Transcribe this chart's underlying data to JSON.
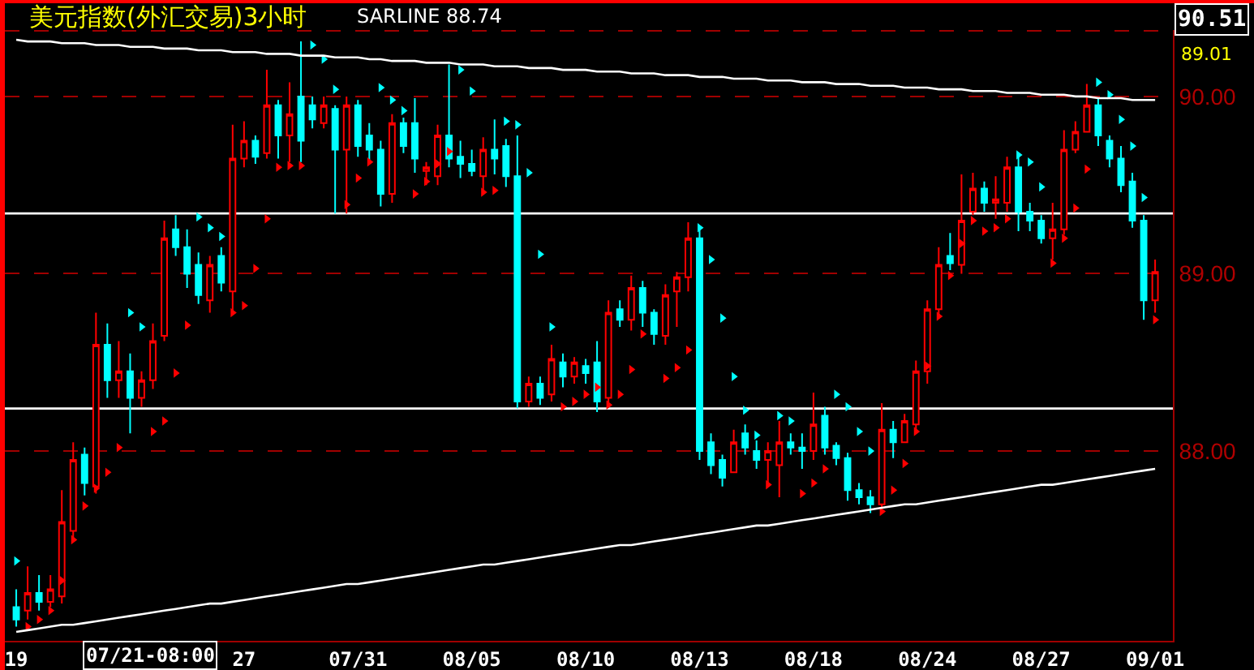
{
  "chart_data": {
    "type": "candlestick",
    "title": "美元指数(外汇交易)3小时",
    "categories": [
      "19",
      null,
      null,
      null,
      null,
      null,
      null,
      null,
      null,
      null,
      null,
      null,
      null,
      null,
      null,
      null,
      null,
      null,
      null,
      null,
      "27",
      null,
      null,
      null,
      null,
      null,
      null,
      null,
      null,
      null,
      "07/31",
      null,
      null,
      null,
      null,
      null,
      null,
      null,
      null,
      null,
      "08/05",
      null,
      null,
      null,
      null,
      null,
      null,
      null,
      null,
      null,
      "08/10",
      null,
      null,
      null,
      null,
      null,
      null,
      null,
      null,
      null,
      "08/13",
      null,
      null,
      null,
      null,
      null,
      null,
      null,
      null,
      null,
      "08/18",
      null,
      null,
      null,
      null,
      null,
      null,
      null,
      null,
      null,
      "08/24",
      null,
      null,
      null,
      null,
      null,
      null,
      null,
      null,
      null,
      "08/27",
      null,
      null,
      null,
      null,
      null,
      null,
      null,
      null,
      null,
      "09/01"
    ],
    "ohlc": [
      [
        87.12,
        87.22,
        87.01,
        87.05
      ],
      [
        87.1,
        87.35,
        87.05,
        87.2
      ],
      [
        87.2,
        87.3,
        87.1,
        87.15
      ],
      [
        87.15,
        87.3,
        87.12,
        87.22
      ],
      [
        87.18,
        87.78,
        87.14,
        87.6
      ],
      [
        87.55,
        88.05,
        87.5,
        87.95
      ],
      [
        87.98,
        88.02,
        87.75,
        87.82
      ],
      [
        87.8,
        88.78,
        87.76,
        88.6
      ],
      [
        88.6,
        88.72,
        88.3,
        88.4
      ],
      [
        88.4,
        88.62,
        88.3,
        88.45
      ],
      [
        88.45,
        88.55,
        88.1,
        88.3
      ],
      [
        88.3,
        88.45,
        88.25,
        88.4
      ],
      [
        88.4,
        88.72,
        88.35,
        88.62
      ],
      [
        88.65,
        89.3,
        88.62,
        89.2
      ],
      [
        89.25,
        89.33,
        89.1,
        89.15
      ],
      [
        89.15,
        89.25,
        88.92,
        89.0
      ],
      [
        89.05,
        89.12,
        88.83,
        88.88
      ],
      [
        88.85,
        89.1,
        88.78,
        89.05
      ],
      [
        89.1,
        89.15,
        88.9,
        88.95
      ],
      [
        88.9,
        89.84,
        88.78,
        89.65
      ],
      [
        89.65,
        89.86,
        89.6,
        89.75
      ],
      [
        89.75,
        89.78,
        89.62,
        89.66
      ],
      [
        89.68,
        90.15,
        89.65,
        89.95
      ],
      [
        89.95,
        89.98,
        89.65,
        89.78
      ],
      [
        89.78,
        90.08,
        89.63,
        89.9
      ],
      [
        90.0,
        90.31,
        89.63,
        89.75
      ],
      [
        89.95,
        90.0,
        89.82,
        89.87
      ],
      [
        89.85,
        90.0,
        89.82,
        89.95
      ],
      [
        89.93,
        89.95,
        89.34,
        89.7
      ],
      [
        89.7,
        90.0,
        89.34,
        89.95
      ],
      [
        89.95,
        89.98,
        89.66,
        89.72
      ],
      [
        89.78,
        89.85,
        89.62,
        89.7
      ],
      [
        89.7,
        89.75,
        89.38,
        89.45
      ],
      [
        89.45,
        89.9,
        89.4,
        89.85
      ],
      [
        89.85,
        89.88,
        89.68,
        89.72
      ],
      [
        89.85,
        89.99,
        89.57,
        89.65
      ],
      [
        89.58,
        89.63,
        89.5,
        89.6
      ],
      [
        89.55,
        89.84,
        89.5,
        89.78
      ],
      [
        89.78,
        90.18,
        89.6,
        89.65
      ],
      [
        89.66,
        89.75,
        89.54,
        89.62
      ],
      [
        89.62,
        89.7,
        89.55,
        89.58
      ],
      [
        89.55,
        89.77,
        89.46,
        89.7
      ],
      [
        89.7,
        89.87,
        89.56,
        89.65
      ],
      [
        89.72,
        89.76,
        89.49,
        89.55
      ],
      [
        89.55,
        89.78,
        88.24,
        88.28
      ],
      [
        88.28,
        88.42,
        88.25,
        88.38
      ],
      [
        88.38,
        88.42,
        88.26,
        88.3
      ],
      [
        88.32,
        88.6,
        88.28,
        88.52
      ],
      [
        88.5,
        88.55,
        88.36,
        88.42
      ],
      [
        88.42,
        88.53,
        88.38,
        88.5
      ],
      [
        88.48,
        88.52,
        88.38,
        88.44
      ],
      [
        88.5,
        88.62,
        88.22,
        88.28
      ],
      [
        88.3,
        88.85,
        88.25,
        88.78
      ],
      [
        88.8,
        88.85,
        88.7,
        88.74
      ],
      [
        88.74,
        88.99,
        88.68,
        88.92
      ],
      [
        88.92,
        88.96,
        88.7,
        88.78
      ],
      [
        88.78,
        88.8,
        88.6,
        88.66
      ],
      [
        88.65,
        88.94,
        88.6,
        88.88
      ],
      [
        88.9,
        89.01,
        88.7,
        88.98
      ],
      [
        88.98,
        89.29,
        88.9,
        89.2
      ],
      [
        89.2,
        89.25,
        87.95,
        88.0
      ],
      [
        88.05,
        88.1,
        87.87,
        87.92
      ],
      [
        87.95,
        87.98,
        87.8,
        87.85
      ],
      [
        87.88,
        88.12,
        87.88,
        88.05
      ],
      [
        88.1,
        88.15,
        87.98,
        88.02
      ],
      [
        88.0,
        88.06,
        87.9,
        87.95
      ],
      [
        87.95,
        88.05,
        87.8,
        88.0
      ],
      [
        87.92,
        88.17,
        87.74,
        88.05
      ],
      [
        88.05,
        88.1,
        87.98,
        88.02
      ],
      [
        88.02,
        88.1,
        87.9,
        88.0
      ],
      [
        88.0,
        88.33,
        87.95,
        88.15
      ],
      [
        88.2,
        88.25,
        87.98,
        88.02
      ],
      [
        88.03,
        88.05,
        87.92,
        87.96
      ],
      [
        87.96,
        87.99,
        87.72,
        87.78
      ],
      [
        87.78,
        87.82,
        87.7,
        87.74
      ],
      [
        87.74,
        87.78,
        87.65,
        87.7
      ],
      [
        87.7,
        88.27,
        87.68,
        88.12
      ],
      [
        88.12,
        88.17,
        87.96,
        88.05
      ],
      [
        88.05,
        88.21,
        88.05,
        88.17
      ],
      [
        88.15,
        88.51,
        88.12,
        88.45
      ],
      [
        88.45,
        88.85,
        88.38,
        88.8
      ],
      [
        88.8,
        89.15,
        88.75,
        89.05
      ],
      [
        89.1,
        89.23,
        89.02,
        89.06
      ],
      [
        89.05,
        89.56,
        89.0,
        89.3
      ],
      [
        89.35,
        89.57,
        89.33,
        89.48
      ],
      [
        89.48,
        89.52,
        89.35,
        89.4
      ],
      [
        89.4,
        89.55,
        89.31,
        89.42
      ],
      [
        89.4,
        89.66,
        89.35,
        89.6
      ],
      [
        89.6,
        89.66,
        89.24,
        89.35
      ],
      [
        89.35,
        89.4,
        89.24,
        89.3
      ],
      [
        89.3,
        89.33,
        89.17,
        89.2
      ],
      [
        89.2,
        89.4,
        89.08,
        89.25
      ],
      [
        89.25,
        89.81,
        89.22,
        89.7
      ],
      [
        89.7,
        89.86,
        89.68,
        89.8
      ],
      [
        89.8,
        90.07,
        89.8,
        89.95
      ],
      [
        89.95,
        89.99,
        89.72,
        89.78
      ],
      [
        89.75,
        89.78,
        89.6,
        89.65
      ],
      [
        89.65,
        89.72,
        89.46,
        89.5
      ],
      [
        89.52,
        89.57,
        89.26,
        89.3
      ],
      [
        89.3,
        89.33,
        88.74,
        88.85
      ],
      [
        88.85,
        89.08,
        88.78,
        89.01
      ]
    ],
    "series": [
      {
        "type": "scatter",
        "marker": "triangle",
        "values": [
          87.38,
          87.01,
          87.05,
          87.1,
          87.27,
          87.5,
          87.69,
          87.79,
          87.88,
          88.02,
          88.78,
          88.7,
          88.11,
          88.17,
          88.44,
          88.71,
          89.32,
          89.26,
          89.21,
          88.78,
          88.82,
          89.03,
          89.31,
          89.6,
          89.61,
          89.61,
          90.29,
          90.21,
          90.04,
          89.39,
          89.54,
          89.63,
          90.05,
          89.98,
          89.92,
          89.45,
          89.52,
          89.62,
          89.69,
          90.15,
          90.03,
          89.46,
          89.47,
          89.86,
          89.84,
          89.57,
          89.11,
          88.7,
          88.25,
          88.28,
          88.32,
          88.36,
          88.26,
          88.32,
          88.46,
          88.66,
          null,
          88.41,
          88.47,
          88.57,
          89.26,
          89.08,
          88.75,
          88.42,
          88.23,
          88.09,
          87.81,
          88.2,
          88.17,
          87.76,
          87.82,
          87.9,
          88.32,
          88.25,
          88.11,
          88.0,
          87.66,
          87.78,
          87.93,
          88.11,
          88.48,
          88.76,
          88.99,
          89.17,
          89.3,
          89.24,
          89.26,
          89.31,
          89.67,
          89.63,
          89.49,
          89.06,
          89.2,
          89.37,
          89.59,
          90.08,
          90.01,
          89.87,
          89.72,
          89.43,
          88.74
        ],
        "colors": [
          "#00ffff",
          "#ff0000",
          "#ff0000",
          "#ff0000",
          "#ff0000",
          "#ff0000",
          "#ff0000",
          "#ff0000",
          "#ff0000",
          "#ff0000",
          "#00ffff",
          "#00ffff",
          "#ff0000",
          "#ff0000",
          "#ff0000",
          "#ff0000",
          "#00ffff",
          "#00ffff",
          "#00ffff",
          "#ff0000",
          "#ff0000",
          "#ff0000",
          "#ff0000",
          "#ff0000",
          "#ff0000",
          "#ff0000",
          "#00ffff",
          "#00ffff",
          "#00ffff",
          "#ff0000",
          "#ff0000",
          "#ff0000",
          "#00ffff",
          "#00ffff",
          "#00ffff",
          "#ff0000",
          "#ff0000",
          "#ff0000",
          "#ff0000",
          "#00ffff",
          "#00ffff",
          "#ff0000",
          "#ff0000",
          "#00ffff",
          "#00ffff",
          "#00ffff",
          "#00ffff",
          "#00ffff",
          "#ff0000",
          "#ff0000",
          "#ff0000",
          "#ff0000",
          "#ff0000",
          "#ff0000",
          "#ff0000",
          "#ff0000",
          "#ff0000",
          "#ff0000",
          "#ff0000",
          "#ff0000",
          "#00ffff",
          "#00ffff",
          "#00ffff",
          "#00ffff",
          "#00ffff",
          "#00ffff",
          "#ff0000",
          "#00ffff",
          "#00ffff",
          "#ff0000",
          "#ff0000",
          "#ff0000",
          "#00ffff",
          "#00ffff",
          "#00ffff",
          "#00ffff",
          "#ff0000",
          "#ff0000",
          "#ff0000",
          "#ff0000",
          "#ff0000",
          "#ff0000",
          "#ff0000",
          "#ff0000",
          "#ff0000",
          "#ff0000",
          "#ff0000",
          "#ff0000",
          "#00ffff",
          "#00ffff",
          "#00ffff",
          "#ff0000",
          "#ff0000",
          "#ff0000",
          "#ff0000",
          "#00ffff",
          "#00ffff",
          "#00ffff",
          "#00ffff",
          "#00ffff",
          "#ff0000"
        ]
      },
      {
        "type": "line",
        "color": "#ffffff",
        "values": [
          90.32,
          90.31,
          90.31,
          90.31,
          90.3,
          90.3,
          90.3,
          90.29,
          90.29,
          90.29,
          90.28,
          90.28,
          90.28,
          90.27,
          90.27,
          90.27,
          90.26,
          90.26,
          90.26,
          90.25,
          90.25,
          90.25,
          90.24,
          90.24,
          90.24,
          90.23,
          90.23,
          90.23,
          90.22,
          90.22,
          90.22,
          90.21,
          90.21,
          90.2,
          90.2,
          90.2,
          90.19,
          90.19,
          90.19,
          90.18,
          90.18,
          90.18,
          90.17,
          90.17,
          90.17,
          90.16,
          90.16,
          90.16,
          90.15,
          90.15,
          90.15,
          90.14,
          90.14,
          90.14,
          90.13,
          90.13,
          90.13,
          90.12,
          90.12,
          90.12,
          90.11,
          90.11,
          90.11,
          90.1,
          90.1,
          90.1,
          90.09,
          90.09,
          90.09,
          90.08,
          90.08,
          90.08,
          90.07,
          90.07,
          90.07,
          90.06,
          90.06,
          90.06,
          90.05,
          90.05,
          90.05,
          90.04,
          90.04,
          90.04,
          90.03,
          90.03,
          90.03,
          90.02,
          90.02,
          90.02,
          90.01,
          90.01,
          90.01,
          90.0,
          90.0,
          89.99,
          89.99,
          89.99,
          89.98,
          89.98,
          89.98
        ]
      },
      {
        "type": "line",
        "color": "#ffffff",
        "values": [
          86.98,
          86.99,
          87.0,
          87.01,
          87.02,
          87.02,
          87.03,
          87.04,
          87.05,
          87.06,
          87.07,
          87.08,
          87.09,
          87.1,
          87.11,
          87.12,
          87.13,
          87.14,
          87.14,
          87.15,
          87.16,
          87.17,
          87.18,
          87.19,
          87.2,
          87.21,
          87.22,
          87.23,
          87.24,
          87.25,
          87.25,
          87.26,
          87.27,
          87.28,
          87.29,
          87.3,
          87.31,
          87.32,
          87.33,
          87.34,
          87.35,
          87.36,
          87.36,
          87.37,
          87.38,
          87.39,
          87.4,
          87.41,
          87.42,
          87.43,
          87.44,
          87.45,
          87.46,
          87.47,
          87.47,
          87.48,
          87.49,
          87.5,
          87.51,
          87.52,
          87.53,
          87.54,
          87.55,
          87.56,
          87.57,
          87.58,
          87.58,
          87.59,
          87.6,
          87.61,
          87.62,
          87.63,
          87.64,
          87.65,
          87.66,
          87.67,
          87.68,
          87.69,
          87.7,
          87.7,
          87.71,
          87.72,
          87.73,
          87.74,
          87.75,
          87.76,
          87.77,
          87.78,
          87.79,
          87.8,
          87.81,
          87.81,
          87.82,
          87.83,
          87.84,
          87.85,
          87.86,
          87.87,
          87.88,
          87.89,
          87.9
        ]
      }
    ],
    "ref_lines": [
      {
        "axis": "y",
        "value": 89.34,
        "color": "#ffffff"
      },
      {
        "axis": "y",
        "value": 88.24,
        "color": "#ffffff"
      }
    ],
    "ylim": [
      86.93,
      90.37
    ],
    "yticks": [
      {
        "value": 88,
        "label": "88.00"
      },
      {
        "value": 89,
        "label": "89.00"
      },
      {
        "value": 90,
        "label": "90.00"
      }
    ],
    "grid": "y",
    "annotations": [
      "SARLINE 88.74",
      "90.51",
      "89.01",
      "07/21-08:00"
    ]
  }
}
